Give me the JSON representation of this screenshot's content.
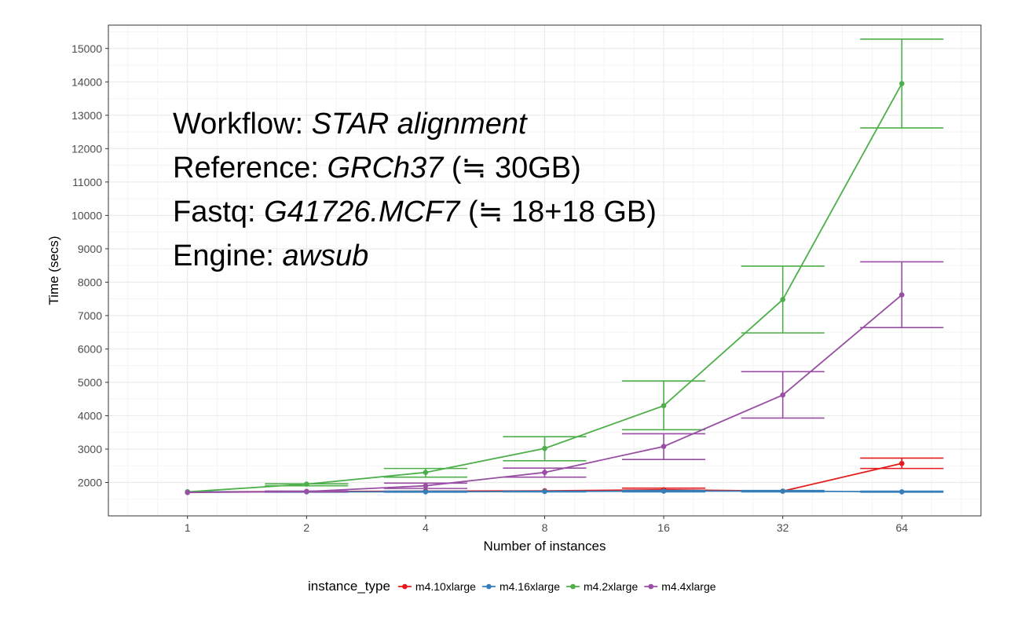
{
  "chart_data": {
    "type": "line",
    "xlabel": "Number of instances",
    "ylabel": "Time (secs)",
    "x_scale": "log2",
    "x": [
      1,
      2,
      4,
      8,
      16,
      32,
      64
    ],
    "x_tick_labels": [
      "1",
      "2",
      "4",
      "8",
      "16",
      "32",
      "64"
    ],
    "y_ticks": [
      2000,
      3000,
      4000,
      5000,
      6000,
      7000,
      8000,
      9000,
      10000,
      11000,
      12000,
      13000,
      14000,
      15000
    ],
    "ylim": [
      1000,
      15700
    ],
    "grid": true,
    "legend": {
      "title": "instance_type",
      "position": "bottom"
    },
    "series": [
      {
        "name": "m4.10xlarge",
        "color": "#e41a1c",
        "values": [
          1720,
          1730,
          1740,
          1750,
          1780,
          1740,
          2570
        ],
        "err_low": [
          null,
          null,
          null,
          null,
          1740,
          null,
          2420
        ],
        "err_high": [
          null,
          null,
          null,
          null,
          1830,
          null,
          2730
        ]
      },
      {
        "name": "m4.16xlarge",
        "color": "#377eb8",
        "values": [
          1720,
          1720,
          1720,
          1730,
          1740,
          1740,
          1720
        ],
        "err_low": [
          null,
          1710,
          1710,
          1720,
          1720,
          1720,
          1710
        ],
        "err_high": [
          null,
          1740,
          1740,
          1740,
          1760,
          1760,
          1740
        ]
      },
      {
        "name": "m4.2xlarge",
        "color": "#4daf4a",
        "values": [
          1720,
          1950,
          2300,
          3020,
          4300,
          7480,
          13950
        ],
        "err_low": [
          null,
          1900,
          2160,
          2650,
          3580,
          6480,
          12620
        ],
        "err_high": [
          null,
          1960,
          2420,
          3370,
          5040,
          8480,
          15280
        ]
      },
      {
        "name": "m4.4xlarge",
        "color": "#984ea3",
        "values": [
          1700,
          1730,
          1900,
          2300,
          3080,
          4620,
          7620
        ],
        "err_low": [
          null,
          1720,
          1820,
          2160,
          2690,
          3930,
          6640
        ],
        "err_high": [
          null,
          1740,
          1980,
          2430,
          3460,
          5320,
          8610
        ]
      }
    ],
    "annotations": [
      {
        "prefix": "Workflow: ",
        "italic": "STAR alignment",
        "suffix": ""
      },
      {
        "prefix": "Reference: ",
        "italic": "GRCh37",
        "suffix": " (≒ 30GB)"
      },
      {
        "prefix": "Fastq: ",
        "italic": "G41726.MCF7",
        "suffix": " (≒ 18+18 GB)"
      },
      {
        "prefix": "Engine: ",
        "italic": "awsub",
        "suffix": ""
      }
    ]
  }
}
